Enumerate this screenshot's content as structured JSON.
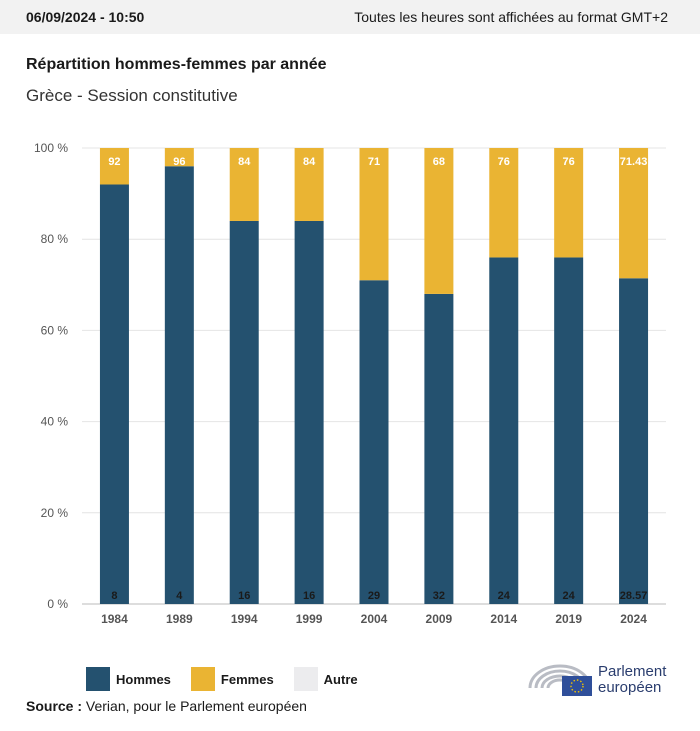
{
  "header": {
    "datetime": "06/09/2024 - 10:50",
    "timezone_note": "Toutes les heures sont affichées au format GMT+2"
  },
  "title": "Répartition hommes-femmes par année",
  "subtitle": "Grèce - Session constitutive",
  "legend": {
    "items": [
      {
        "label": "Hommes",
        "color": "#24516f"
      },
      {
        "label": "Femmes",
        "color": "#eab433"
      },
      {
        "label": "Autre",
        "color": "#ececee"
      }
    ]
  },
  "source": {
    "label": "Source :",
    "text": "Verian, pour le Parlement européen"
  },
  "logo": {
    "line1": "Parlement",
    "line2": "européen"
  },
  "chart_data": {
    "type": "bar",
    "stacked": true,
    "categories": [
      "1984",
      "1989",
      "1994",
      "1999",
      "2004",
      "2009",
      "2014",
      "2019",
      "2024"
    ],
    "series": [
      {
        "name": "Hommes",
        "color": "#24516f",
        "values": [
          92,
          96,
          84,
          84,
          71,
          68,
          76,
          76,
          71.43
        ],
        "labels": [
          "92",
          "96",
          "84",
          "84",
          "71",
          "68",
          "76",
          "76",
          "71.43"
        ]
      },
      {
        "name": "Femmes",
        "color": "#eab433",
        "values": [
          8,
          4,
          16,
          16,
          29,
          32,
          24,
          24,
          28.57
        ],
        "labels": [
          "8",
          "4",
          "16",
          "16",
          "29",
          "32",
          "24",
          "24",
          "28.57"
        ]
      },
      {
        "name": "Autre",
        "color": "#ececee",
        "values": [
          0,
          0,
          0,
          0,
          0,
          0,
          0,
          0,
          0
        ]
      }
    ],
    "ylim": [
      0,
      100
    ],
    "yticks": [
      "0 %",
      "20 %",
      "40 %",
      "60 %",
      "80 %",
      "100 %"
    ],
    "grid": true,
    "legend_position": "bottom-left"
  }
}
